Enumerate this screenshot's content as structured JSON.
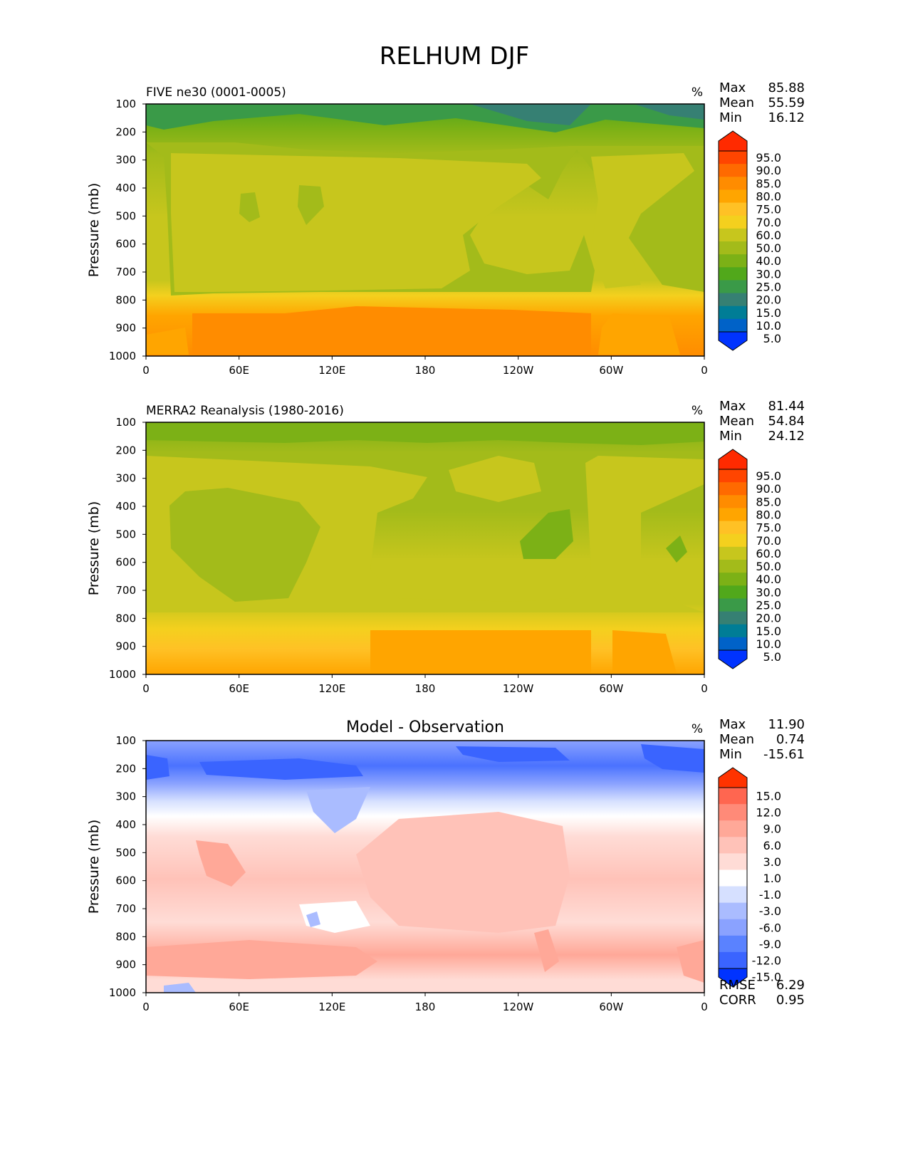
{
  "figure": {
    "title": "RELHUM DJF"
  },
  "chart_data": [
    {
      "type": "heatmap",
      "title": "FIVE ne30 (0001-0005)",
      "units": "%",
      "ylabel": "Pressure (mb)",
      "yticks": [
        "100",
        "200",
        "300",
        "400",
        "500",
        "600",
        "700",
        "800",
        "900",
        "1000"
      ],
      "ylim": [
        100,
        1000
      ],
      "xticks": [
        "0",
        "60E",
        "120E",
        "180",
        "120W",
        "60W",
        "0"
      ],
      "xlim": [
        0,
        360
      ],
      "stats": {
        "max_label": "Max",
        "max": "85.88",
        "mean_label": "Mean",
        "mean": "55.59",
        "min_label": "Min",
        "min": "16.12"
      },
      "levels": [
        "95.0",
        "90.0",
        "85.0",
        "80.0",
        "75.0",
        "70.0",
        "60.0",
        "50.0",
        "40.0",
        "30.0",
        "25.0",
        "20.0",
        "15.0",
        "10.0",
        "5.0"
      ],
      "colors": [
        "#ff2a00",
        "#ff4500",
        "#ff6a00",
        "#ff8c00",
        "#ffa500",
        "#ffc125",
        "#f4d01e",
        "#c7c61d",
        "#a3bb1a",
        "#7cb116",
        "#51a81b",
        "#3a9a48",
        "#368073",
        "#007d96",
        "#0062c8",
        "#0033ff"
      ]
    },
    {
      "type": "heatmap",
      "title": "MERRA2 Reanalysis (1980-2016)",
      "units": "%",
      "ylabel": "Pressure (mb)",
      "yticks": [
        "100",
        "200",
        "300",
        "400",
        "500",
        "600",
        "700",
        "800",
        "900",
        "1000"
      ],
      "ylim": [
        100,
        1000
      ],
      "xticks": [
        "0",
        "60E",
        "120E",
        "180",
        "120W",
        "60W",
        "0"
      ],
      "xlim": [
        0,
        360
      ],
      "stats": {
        "max_label": "Max",
        "max": "81.44",
        "mean_label": "Mean",
        "mean": "54.84",
        "min_label": "Min",
        "min": "24.12"
      },
      "levels": [
        "95.0",
        "90.0",
        "85.0",
        "80.0",
        "75.0",
        "70.0",
        "60.0",
        "50.0",
        "40.0",
        "30.0",
        "25.0",
        "20.0",
        "15.0",
        "10.0",
        "5.0"
      ],
      "colors": [
        "#ff2a00",
        "#ff4500",
        "#ff6a00",
        "#ff8c00",
        "#ffa500",
        "#ffc125",
        "#f4d01e",
        "#c7c61d",
        "#a3bb1a",
        "#7cb116",
        "#51a81b",
        "#3a9a48",
        "#368073",
        "#007d96",
        "#0062c8",
        "#0033ff"
      ]
    },
    {
      "type": "heatmap",
      "title": "Model - Observation",
      "units": "%",
      "ylabel": "Pressure (mb)",
      "yticks": [
        "100",
        "200",
        "300",
        "400",
        "500",
        "600",
        "700",
        "800",
        "900",
        "1000"
      ],
      "ylim": [
        100,
        1000
      ],
      "xticks": [
        "0",
        "60E",
        "120E",
        "180",
        "120W",
        "60W",
        "0"
      ],
      "xlim": [
        0,
        360
      ],
      "stats": {
        "max_label": "Max",
        "max": "11.90",
        "mean_label": "Mean",
        "mean": "0.74",
        "min_label": "Min",
        "min": "-15.61"
      },
      "levels": [
        "15.0",
        "12.0",
        "9.0",
        "6.0",
        "3.0",
        "1.0",
        "-1.0",
        "-3.0",
        "-6.0",
        "-9.0",
        "-12.0",
        "-15.0"
      ],
      "colors": [
        "#ff3300",
        "#ff6650",
        "#ff8a78",
        "#ffa898",
        "#ffc2b8",
        "#ffdcd6",
        "#ffffff",
        "#d6e0ff",
        "#aabcff",
        "#8aa2ff",
        "#5a82ff",
        "#3a64ff",
        "#0033ff"
      ],
      "extra_stats": {
        "rmse_label": "RMSE",
        "rmse": "6.29",
        "corr_label": "CORR",
        "corr": "0.95"
      }
    }
  ]
}
